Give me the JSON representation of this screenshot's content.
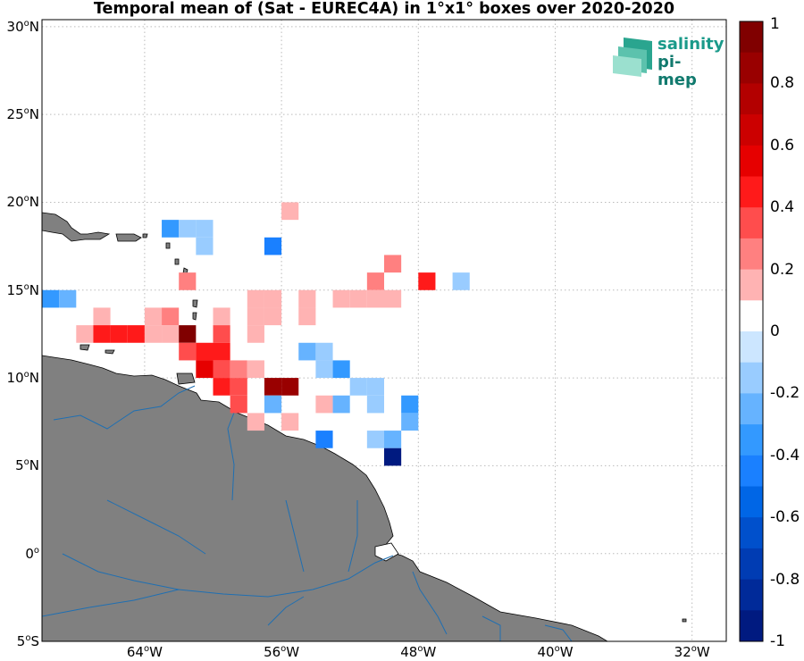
{
  "title": "Temporal mean of (Sat - EUREC4A) in 1°x1° boxes over 2020-2020",
  "logo": {
    "line1": "salinity",
    "line2": "pi-mep"
  },
  "lat_ticks": [
    {
      "value": 30,
      "text": "30",
      "hemi": "N"
    },
    {
      "value": 25,
      "text": "25",
      "hemi": "N"
    },
    {
      "value": 20,
      "text": "20",
      "hemi": "N"
    },
    {
      "value": 15,
      "text": "15",
      "hemi": "N"
    },
    {
      "value": 10,
      "text": "10",
      "hemi": "N"
    },
    {
      "value": 5,
      "text": "5",
      "hemi": "N"
    },
    {
      "value": 0,
      "text": "0",
      "hemi": ""
    },
    {
      "value": -5,
      "text": "5",
      "hemi": "S"
    }
  ],
  "lon_ticks": [
    {
      "value": -64,
      "text": "64",
      "hemi": "W"
    },
    {
      "value": -56,
      "text": "56",
      "hemi": "W"
    },
    {
      "value": -48,
      "text": "48",
      "hemi": "W"
    },
    {
      "value": -40,
      "text": "40",
      "hemi": "W"
    },
    {
      "value": -32,
      "text": "32",
      "hemi": "W"
    }
  ],
  "extent": {
    "lon_min": -70,
    "lon_max": -30,
    "lat_min": -5,
    "lat_max": 30.4
  },
  "colorbar": {
    "min": -1,
    "max": 1,
    "tick_labels": [
      "1",
      "0.8",
      "0.6",
      "0.4",
      "0.2",
      "0",
      "-0.2",
      "-0.4",
      "-0.6",
      "-0.8",
      "-1"
    ],
    "colors": [
      "#800000",
      "#990000",
      "#b30000",
      "#cc0000",
      "#e60000",
      "#ff1a1a",
      "#ff4d4d",
      "#ff8080",
      "#ffb3b3",
      "#ffffff",
      "#ffffff",
      "#cce6ff",
      "#99ccff",
      "#66b3ff",
      "#3399ff",
      "#1a80ff",
      "#0066e6",
      "#0050cc",
      "#003cb3",
      "#002a99",
      "#001a80"
    ]
  },
  "chart_data": {
    "type": "heatmap",
    "title": "Temporal mean of (Sat - EUREC4A) in 1°x1° boxes over 2020-2020",
    "xlabel": "",
    "ylabel": "",
    "xlim": [
      -70,
      -30
    ],
    "ylim": [
      -5,
      30.4
    ],
    "value_range": [
      -1,
      1
    ],
    "cells": [
      {
        "lon": -56,
        "lat": 19,
        "v": 0.2
      },
      {
        "lon": -63,
        "lat": 18,
        "v": -0.3
      },
      {
        "lon": -62,
        "lat": 18,
        "v": -0.1
      },
      {
        "lon": -61,
        "lat": 18,
        "v": -0.1
      },
      {
        "lon": -61,
        "lat": 17,
        "v": -0.1
      },
      {
        "lon": -57,
        "lat": 17,
        "v": -0.4
      },
      {
        "lon": -50,
        "lat": 16,
        "v": 0.3
      },
      {
        "lon": -62,
        "lat": 15,
        "v": 0.3
      },
      {
        "lon": -51,
        "lat": 15,
        "v": 0.3
      },
      {
        "lon": -48,
        "lat": 15,
        "v": 0.5
      },
      {
        "lon": -46,
        "lat": 15,
        "v": -0.1
      },
      {
        "lon": -58,
        "lat": 14,
        "v": 0.2
      },
      {
        "lon": -57,
        "lat": 14,
        "v": 0.2
      },
      {
        "lon": -55,
        "lat": 14,
        "v": 0.2
      },
      {
        "lon": -53,
        "lat": 14,
        "v": 0.2
      },
      {
        "lon": -52,
        "lat": 14,
        "v": 0.2
      },
      {
        "lon": -51,
        "lat": 14,
        "v": 0.2
      },
      {
        "lon": -50,
        "lat": 14,
        "v": 0.2
      },
      {
        "lon": -70,
        "lat": 14,
        "v": -0.3
      },
      {
        "lon": -69,
        "lat": 14,
        "v": -0.2
      },
      {
        "lon": -67,
        "lat": 13,
        "v": 0.2
      },
      {
        "lon": -64,
        "lat": 13,
        "v": 0.2
      },
      {
        "lon": -63,
        "lat": 13,
        "v": 0.3
      },
      {
        "lon": -60,
        "lat": 13,
        "v": 0.2
      },
      {
        "lon": -58,
        "lat": 13,
        "v": 0.2
      },
      {
        "lon": -57,
        "lat": 13,
        "v": 0.2
      },
      {
        "lon": -55,
        "lat": 13,
        "v": 0.2
      },
      {
        "lon": -68,
        "lat": 12,
        "v": 0.2
      },
      {
        "lon": -67,
        "lat": 12,
        "v": 0.5
      },
      {
        "lon": -66,
        "lat": 12,
        "v": 0.5
      },
      {
        "lon": -65,
        "lat": 12,
        "v": 0.5
      },
      {
        "lon": -64,
        "lat": 12,
        "v": 0.2
      },
      {
        "lon": -63,
        "lat": 12,
        "v": 0.2
      },
      {
        "lon": -62,
        "lat": 12,
        "v": 0.9
      },
      {
        "lon": -60,
        "lat": 12,
        "v": 0.4
      },
      {
        "lon": -58,
        "lat": 12,
        "v": 0.2
      },
      {
        "lon": -62,
        "lat": 11,
        "v": 0.4
      },
      {
        "lon": -61,
        "lat": 11,
        "v": 0.5
      },
      {
        "lon": -60,
        "lat": 11,
        "v": 0.5
      },
      {
        "lon": -55,
        "lat": 11,
        "v": -0.2
      },
      {
        "lon": -54,
        "lat": 11,
        "v": -0.1
      },
      {
        "lon": -61,
        "lat": 10,
        "v": 0.6
      },
      {
        "lon": -60,
        "lat": 10,
        "v": 0.4
      },
      {
        "lon": -59,
        "lat": 10,
        "v": 0.3
      },
      {
        "lon": -58,
        "lat": 10,
        "v": 0.2
      },
      {
        "lon": -54,
        "lat": 10,
        "v": -0.1
      },
      {
        "lon": -53,
        "lat": 10,
        "v": -0.3
      },
      {
        "lon": -60,
        "lat": 9,
        "v": 0.5
      },
      {
        "lon": -59,
        "lat": 9,
        "v": 0.4
      },
      {
        "lon": -57,
        "lat": 9,
        "v": 0.8
      },
      {
        "lon": -56,
        "lat": 9,
        "v": 0.8
      },
      {
        "lon": -52,
        "lat": 9,
        "v": -0.1
      },
      {
        "lon": -51,
        "lat": 9,
        "v": -0.1
      },
      {
        "lon": -59,
        "lat": 8,
        "v": 0.4
      },
      {
        "lon": -57,
        "lat": 8,
        "v": -0.2
      },
      {
        "lon": -54,
        "lat": 8,
        "v": 0.2
      },
      {
        "lon": -53,
        "lat": 8,
        "v": -0.2
      },
      {
        "lon": -51,
        "lat": 8,
        "v": -0.1
      },
      {
        "lon": -49,
        "lat": 8,
        "v": -0.3
      },
      {
        "lon": -58,
        "lat": 7,
        "v": 0.2
      },
      {
        "lon": -56,
        "lat": 7,
        "v": 0.2
      },
      {
        "lon": -49,
        "lat": 7,
        "v": -0.2
      },
      {
        "lon": -54,
        "lat": 6,
        "v": -0.4
      },
      {
        "lon": -51,
        "lat": 6,
        "v": -0.1
      },
      {
        "lon": -50,
        "lat": 6,
        "v": -0.2
      },
      {
        "lon": -50,
        "lat": 5,
        "v": -0.9
      }
    ]
  }
}
